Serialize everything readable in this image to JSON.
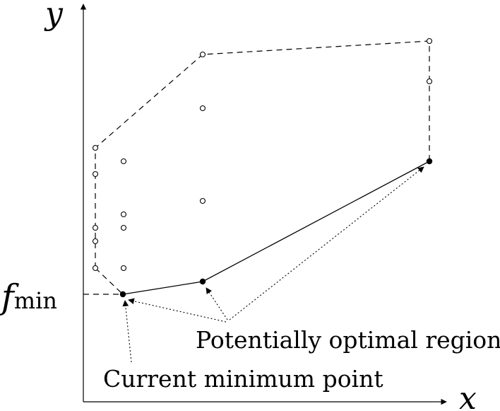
{
  "axes": {
    "x_label": "x",
    "y_label": "y",
    "fmin_main": "f",
    "fmin_sub": "min"
  },
  "annotations": {
    "potentially_optimal": "Potentially optimal regions",
    "current_minimum": "Current minimum point"
  },
  "colors": {
    "ink": "#000000",
    "background": "#ffffff"
  }
}
